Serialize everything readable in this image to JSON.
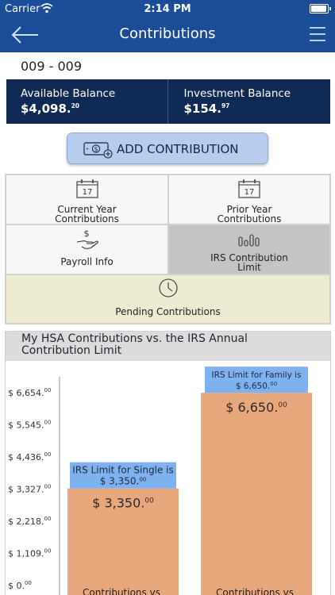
{
  "status": {
    "carrier": "Carrier",
    "time": "2:14 PM"
  },
  "nav": {
    "title": "Contributions",
    "back_icon": "arrow-left-icon",
    "menu_icon": "hamburger-menu-icon"
  },
  "account": {
    "id": "009 - 009"
  },
  "balances": {
    "available": {
      "label": "Available Balance",
      "dollars": "$4,098.",
      "cents": "20"
    },
    "investment": {
      "label": "Investment Balance",
      "dollars": "$154.",
      "cents": "97"
    }
  },
  "add_contribution": {
    "label": "ADD CONTRIBUTION",
    "icon": "money-add-icon"
  },
  "tiles": {
    "current_year": {
      "line1": "Current Year",
      "line2": "Contributions",
      "icon_day": "17",
      "icon": "calendar-icon"
    },
    "prior_year": {
      "line1": "Prior Year",
      "line2": "Contributions",
      "icon_day": "17",
      "icon": "calendar-icon"
    },
    "payroll": {
      "label": "Payroll Info",
      "icon": "hand-dollar-icon"
    },
    "irs": {
      "line1": "IRS Contribution",
      "line2": "Limit",
      "icon": "bar-chart-icon"
    },
    "pending": {
      "label": "Pending Contributions",
      "icon": "clock-icon"
    }
  },
  "chart_data": {
    "type": "bar",
    "title_line1": "My HSA Contributions vs. the IRS Annual",
    "title_line2": "Contribution Limit",
    "ylim": [
      0,
      6654
    ],
    "y_ticks": [
      {
        "value": 6654,
        "dollars": "$ 6,654.",
        "cents": "00"
      },
      {
        "value": 5545,
        "dollars": "$ 5,545.",
        "cents": "00"
      },
      {
        "value": 4436,
        "dollars": "$ 4,436.",
        "cents": "00"
      },
      {
        "value": 3327,
        "dollars": "$ 3,327.",
        "cents": "00"
      },
      {
        "value": 2218,
        "dollars": "$ 2,218.",
        "cents": "00"
      },
      {
        "value": 1109,
        "dollars": "$ 1,109.",
        "cents": "00"
      },
      {
        "value": 0,
        "dollars": "$ 0.",
        "cents": "00"
      }
    ],
    "bars": [
      {
        "category": "Contributions vs",
        "value": 3350,
        "dollars": "$ 3,350.",
        "cents": "00",
        "limit_line1": "IRS Limit for Single is",
        "limit_line2": "$ 3,350.",
        "limit_cents": "00"
      },
      {
        "category": "Contributions vs",
        "value": 6650,
        "dollars": "$ 6,650.",
        "cents": "00",
        "limit_line1": "IRS Limit for Family is",
        "limit_line2": "$ 6,650.",
        "limit_cents": "00"
      }
    ],
    "colors": {
      "bar": "#e8a87e",
      "limit_box": "#80b1ef",
      "axis": "#9a9a9a"
    }
  }
}
